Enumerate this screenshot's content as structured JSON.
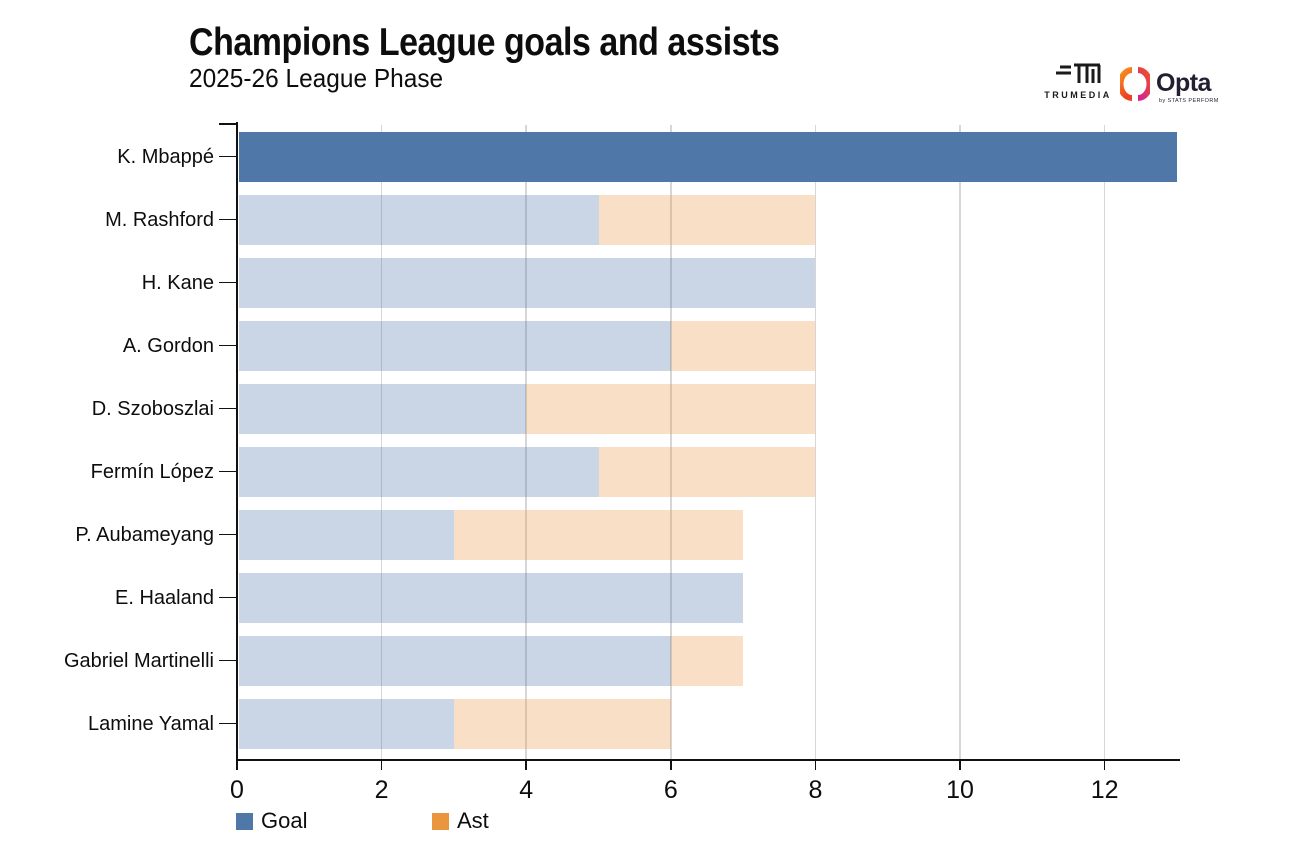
{
  "title": "Champions League goals and assists",
  "subtitle": "2025-26 League Phase",
  "logos": {
    "trumedia": "TRUMEDIA",
    "opta": "Opta",
    "opta_sub": "by STATS PERFORM"
  },
  "chart_data": {
    "type": "bar",
    "orientation": "horizontal",
    "title": "Champions League goals and assists",
    "subtitle": "2025-26 League Phase",
    "categories": [
      "K. Mbappé",
      "M. Rashford",
      "H. Kane",
      "A. Gordon",
      "D. Szoboszlai",
      "Fermín López",
      "P. Aubameyang",
      "E. Haaland",
      "Gabriel Martinelli",
      "Lamine Yamal"
    ],
    "series": [
      {
        "name": "Goal",
        "values": [
          13,
          5,
          8,
          6,
          4,
          5,
          3,
          7,
          6,
          3
        ]
      },
      {
        "name": "Ast",
        "values": [
          0,
          3,
          0,
          2,
          4,
          3,
          4,
          0,
          1,
          3
        ]
      }
    ],
    "xlim": [
      0,
      13
    ],
    "xticks": [
      0,
      2,
      4,
      6,
      8,
      10,
      12
    ],
    "highlight_index": 0,
    "grid": "vertical",
    "legend_position": "bottom-left",
    "colors": {
      "goal": "#4f78a8",
      "ast": "#e9963e",
      "muted_alpha": 0.3,
      "gridline": "#d6d6d6",
      "axis": "#111111"
    }
  }
}
